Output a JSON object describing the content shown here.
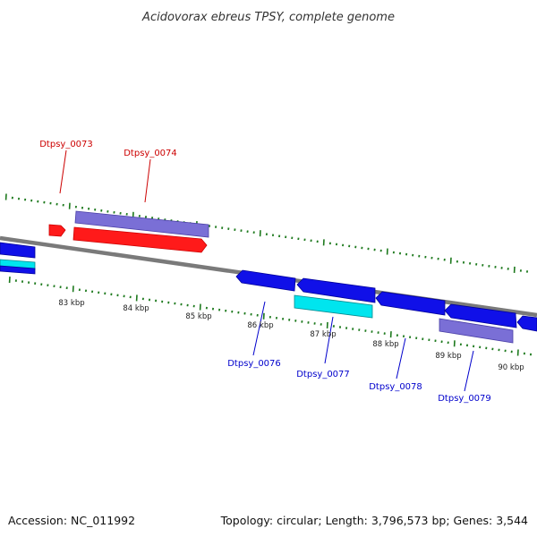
{
  "header": {
    "title": "Acidovorax ebreus TPSY, complete genome"
  },
  "footer": {
    "accession": "Accession: NC_011992",
    "stats": "Topology: circular; Length: 3,796,573 bp; Genes: 3,544"
  },
  "colors": {
    "backbone": "#7a7a7a",
    "tick": "#1e7a1e",
    "forward_gene": "#ff0000",
    "reverse_gene": "#0000ee",
    "rna_gene": "#00e5ee",
    "feature": "#7a6fd6",
    "forward_label": "#cc0000",
    "reverse_label": "#0000cc"
  },
  "scale_labels": [
    "83 kbp",
    "84 kbp",
    "85 kbp",
    "86 kbp",
    "87 kbp",
    "88 kbp",
    "89 kbp",
    "90 kbp"
  ],
  "gene_labels": [
    {
      "text": "Dtpsy_0073",
      "strand": "forward"
    },
    {
      "text": "Dtpsy_0074",
      "strand": "forward"
    },
    {
      "text": "Dtpsy_0076",
      "strand": "reverse"
    },
    {
      "text": "Dtpsy_0077",
      "strand": "reverse"
    },
    {
      "text": "Dtpsy_0078",
      "strand": "reverse"
    },
    {
      "text": "Dtpsy_0079",
      "strand": "reverse"
    }
  ],
  "icons": {
    "gene_arrow": "arrow-shape"
  }
}
